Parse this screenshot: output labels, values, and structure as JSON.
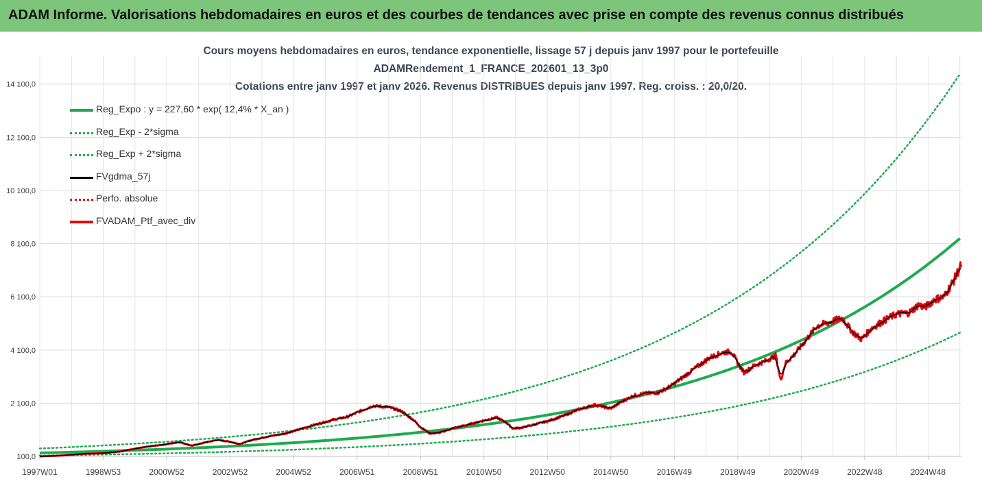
{
  "header": {
    "title": "ADAM Informe. Valorisations hebdomadaires en euros et des courbes de tendances avec prise en compte des revenus connus distribués"
  },
  "colors": {
    "header_bg": "#7dc57b",
    "trend": "#1faa4f",
    "band": "#1faa4f",
    "smooth": "#000000",
    "portfolio": "#e8000b",
    "grid": "#d9d9d9"
  },
  "chart_data": {
    "type": "line",
    "title_lines": [
      "Cours moyens hebdomadaires  en euros, tendance exponentielle, lissage 57 j depuis janv 1997 pour le portefeuille",
      "ADAMRendement_1_FRANCE_202601_13_3p0",
      "Cotations entre janv 1997 et janv 2026. Revenus DISTRIBUES depuis janv 1997. Reg. croiss. : 20,0/20."
    ],
    "x_start_year": 1997.0,
    "x_end_year": 2026.05,
    "x_tick_labels": [
      "1997W01",
      "1998W53",
      "2000W52",
      "2002W52",
      "2004W52",
      "2006W51",
      "2008W51",
      "2010W50",
      "2012W50",
      "2014W50",
      "2016W49",
      "2018W49",
      "2020W49",
      "2022W48",
      "2024W48"
    ],
    "y_tick_labels": [
      "100,0",
      "2 100,0",
      "4 100,0",
      "6 100,0",
      "8 100,0",
      "10 100,0",
      "12 100,0",
      "14 100,0"
    ],
    "y_tick_values": [
      100,
      2100,
      4100,
      6100,
      8100,
      10100,
      12100,
      14100
    ],
    "ylim": [
      100,
      15150
    ],
    "regression": {
      "a": 227.6,
      "rate": 0.124
    },
    "series": [
      {
        "name": "Reg_Expo : y = 227,60 * exp( 12,4% *  X_an )",
        "style": "solid-thick",
        "color": "#1faa4f"
      },
      {
        "name": "Reg_Exp - 2*sigma",
        "style": "dotted",
        "color": "#1faa4f",
        "factor": 0.573
      },
      {
        "name": "Reg_Exp + 2*sigma",
        "style": "dotted",
        "color": "#1faa4f",
        "factor": 1.745
      },
      {
        "name": "FVgdma_57j",
        "style": "solid",
        "color": "#000000"
      },
      {
        "name": "Perfo. absolue",
        "style": "dotted",
        "color": "#e8000b"
      },
      {
        "name": "FVADAM_Ptf_avec_div",
        "style": "solid-thick",
        "color": "#e8000b"
      }
    ],
    "portfolio_points": [
      [
        1997.0,
        100
      ],
      [
        1997.5,
        120
      ],
      [
        1998.0,
        160
      ],
      [
        1998.5,
        200
      ],
      [
        1999.0,
        220
      ],
      [
        1999.5,
        280
      ],
      [
        2000.0,
        390
      ],
      [
        2000.5,
        480
      ],
      [
        2001.0,
        560
      ],
      [
        2001.4,
        640
      ],
      [
        2001.8,
        500
      ],
      [
        2002.2,
        620
      ],
      [
        2002.6,
        720
      ],
      [
        2003.0,
        650
      ],
      [
        2003.3,
        560
      ],
      [
        2003.7,
        720
      ],
      [
        2004.2,
        850
      ],
      [
        2004.7,
        950
      ],
      [
        2005.2,
        1120
      ],
      [
        2005.7,
        1300
      ],
      [
        2006.2,
        1460
      ],
      [
        2006.7,
        1590
      ],
      [
        2007.1,
        1800
      ],
      [
        2007.5,
        2000
      ],
      [
        2008.0,
        1950
      ],
      [
        2008.4,
        1800
      ],
      [
        2008.8,
        1450
      ],
      [
        2009.0,
        1200
      ],
      [
        2009.3,
        960
      ],
      [
        2009.6,
        990
      ],
      [
        2010.0,
        1150
      ],
      [
        2010.5,
        1290
      ],
      [
        2011.0,
        1450
      ],
      [
        2011.4,
        1560
      ],
      [
        2011.7,
        1380
      ],
      [
        2011.9,
        1150
      ],
      [
        2012.2,
        1180
      ],
      [
        2012.6,
        1300
      ],
      [
        2013.0,
        1420
      ],
      [
        2013.5,
        1620
      ],
      [
        2014.0,
        1870
      ],
      [
        2014.5,
        2040
      ],
      [
        2015.0,
        1900
      ],
      [
        2015.3,
        2130
      ],
      [
        2015.7,
        2380
      ],
      [
        2016.1,
        2470
      ],
      [
        2016.5,
        2500
      ],
      [
        2016.9,
        2750
      ],
      [
        2017.3,
        3100
      ],
      [
        2017.7,
        3450
      ],
      [
        2018.1,
        3800
      ],
      [
        2018.5,
        4000
      ],
      [
        2018.8,
        4050
      ],
      [
        2019.0,
        3600
      ],
      [
        2019.2,
        3250
      ],
      [
        2019.5,
        3500
      ],
      [
        2019.9,
        3700
      ],
      [
        2020.2,
        3900
      ],
      [
        2020.35,
        2950
      ],
      [
        2020.5,
        3600
      ],
      [
        2020.8,
        3950
      ],
      [
        2021.1,
        4400
      ],
      [
        2021.5,
        5000
      ],
      [
        2021.9,
        5150
      ],
      [
        2022.3,
        5300
      ],
      [
        2022.6,
        4800
      ],
      [
        2022.9,
        4500
      ],
      [
        2023.2,
        4900
      ],
      [
        2023.6,
        5200
      ],
      [
        2024.0,
        5450
      ],
      [
        2024.4,
        5500
      ],
      [
        2024.7,
        5800
      ],
      [
        2024.9,
        5700
      ],
      [
        2025.2,
        6000
      ],
      [
        2025.5,
        6100
      ],
      [
        2025.8,
        6700
      ],
      [
        2026.0,
        7200
      ],
      [
        2026.05,
        7300
      ]
    ]
  }
}
